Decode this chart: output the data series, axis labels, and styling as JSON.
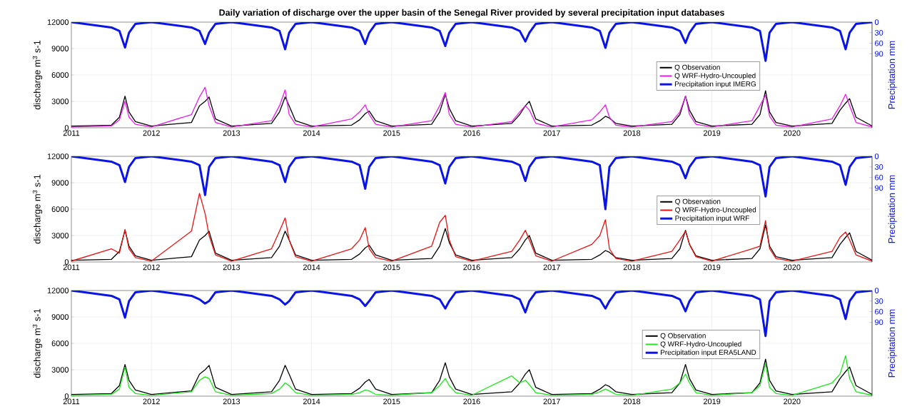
{
  "chart_data": [
    {
      "type": "line",
      "title": "Daily variation of discharge over the upper basin of the Senegal River provided by several precipitation input databases",
      "ylabel": "discharge m$^{3}$ s-1",
      "y2label": "Precipitation mm",
      "x": [
        2011,
        2011.5,
        2011.6,
        2011.67,
        2011.72,
        2011.8,
        2012,
        2012.5,
        2012.6,
        2012.67,
        2012.72,
        2012.8,
        2013,
        2013.5,
        2013.6,
        2013.67,
        2013.72,
        2013.8,
        2014,
        2014.5,
        2014.6,
        2014.67,
        2014.72,
        2014.8,
        2015,
        2015.5,
        2015.6,
        2015.67,
        2015.72,
        2015.8,
        2016,
        2016.5,
        2016.6,
        2016.67,
        2016.72,
        2016.8,
        2017,
        2017.5,
        2017.6,
        2017.67,
        2017.72,
        2017.8,
        2018,
        2018.5,
        2018.6,
        2018.67,
        2018.72,
        2018.8,
        2019,
        2019.5,
        2019.6,
        2019.67,
        2019.72,
        2019.8,
        2020,
        2020.5,
        2020.6,
        2020.67,
        2020.72,
        2020.8,
        2021
      ],
      "xlim": [
        2011,
        2021
      ],
      "xticks": [
        2011,
        2012,
        2013,
        2014,
        2015,
        2016,
        2017,
        2018,
        2019,
        2020
      ],
      "ylim": [
        0,
        12000
      ],
      "yticks": [
        0,
        3000,
        6000,
        9000,
        12000
      ],
      "y2lim": [
        300,
        0
      ],
      "y2ticks": [
        0,
        30,
        60,
        90
      ],
      "grid": true,
      "legend": "right",
      "series": [
        {
          "name": "Q Observation",
          "color": "#000000",
          "values": [
            200,
            300,
            1200,
            3600,
            1800,
            700,
            200,
            600,
            2500,
            3000,
            3500,
            1000,
            200,
            500,
            1800,
            3500,
            2500,
            800,
            200,
            300,
            900,
            1600,
            1900,
            800,
            200,
            400,
            1800,
            3800,
            2200,
            800,
            200,
            500,
            1500,
            2500,
            3000,
            1000,
            200,
            300,
            800,
            1300,
            1100,
            500,
            200,
            400,
            1500,
            3600,
            2000,
            700,
            200,
            400,
            1500,
            4200,
            1800,
            600,
            200,
            500,
            2000,
            2800,
            3300,
            1200,
            200
          ]
        },
        {
          "name": "Q WRF-Hydro-Uncoupled",
          "color": "#e81ee8",
          "values": [
            100,
            200,
            900,
            3000,
            1200,
            400,
            100,
            1500,
            3500,
            4600,
            2500,
            600,
            100,
            800,
            2500,
            4300,
            1500,
            400,
            100,
            1000,
            1800,
            2600,
            1500,
            400,
            100,
            800,
            2500,
            4000,
            1500,
            400,
            100,
            700,
            1800,
            2500,
            2000,
            500,
            100,
            900,
            1800,
            2600,
            1200,
            300,
            100,
            700,
            1800,
            3600,
            1500,
            400,
            100,
            800,
            2500,
            3700,
            1300,
            300,
            100,
            1000,
            2500,
            3800,
            2500,
            600,
            100
          ]
        },
        {
          "name": "Precipitation input IMERG",
          "color": "#0a14e6",
          "axis": "y2",
          "values": [
            0,
            15,
            25,
            72,
            30,
            5,
            0,
            15,
            25,
            62,
            30,
            5,
            0,
            15,
            25,
            77,
            30,
            5,
            0,
            15,
            25,
            62,
            30,
            5,
            0,
            15,
            25,
            68,
            30,
            5,
            0,
            15,
            25,
            55,
            30,
            5,
            0,
            15,
            25,
            73,
            30,
            5,
            0,
            15,
            25,
            59,
            30,
            5,
            0,
            15,
            25,
            110,
            30,
            5,
            0,
            15,
            25,
            77,
            30,
            5,
            0
          ]
        }
      ]
    },
    {
      "type": "line",
      "ylabel": "discharge m$^{3}$ s-1",
      "y2label": "Precipitation mm",
      "x": [
        2011,
        2011.5,
        2011.6,
        2011.67,
        2011.72,
        2011.8,
        2012,
        2012.5,
        2012.6,
        2012.67,
        2012.72,
        2012.8,
        2013,
        2013.5,
        2013.6,
        2013.67,
        2013.72,
        2013.8,
        2014,
        2014.5,
        2014.6,
        2014.67,
        2014.72,
        2014.8,
        2015,
        2015.5,
        2015.6,
        2015.67,
        2015.72,
        2015.8,
        2016,
        2016.5,
        2016.6,
        2016.67,
        2016.72,
        2016.8,
        2017,
        2017.5,
        2017.6,
        2017.67,
        2017.72,
        2017.8,
        2018,
        2018.5,
        2018.6,
        2018.67,
        2018.72,
        2018.8,
        2019,
        2019.5,
        2019.6,
        2019.67,
        2019.72,
        2019.8,
        2020,
        2020.5,
        2020.6,
        2020.67,
        2020.72,
        2020.8,
        2021
      ],
      "xlim": [
        2011,
        2021
      ],
      "xticks": [
        2011,
        2012,
        2013,
        2014,
        2015,
        2016,
        2017,
        2018,
        2019,
        2020
      ],
      "ylim": [
        0,
        12000
      ],
      "yticks": [
        0,
        3000,
        6000,
        9000,
        12000
      ],
      "y2lim": [
        300,
        0
      ],
      "y2ticks": [
        0,
        30,
        60,
        90
      ],
      "grid": true,
      "legend": "right",
      "series": [
        {
          "name": "Q Observation",
          "color": "#000000",
          "values": [
            200,
            300,
            1200,
            3600,
            1800,
            700,
            200,
            600,
            2500,
            3000,
            3500,
            1000,
            200,
            500,
            1800,
            3500,
            2500,
            800,
            200,
            300,
            900,
            1600,
            1900,
            800,
            200,
            400,
            1800,
            3800,
            2200,
            800,
            200,
            500,
            1500,
            2500,
            3000,
            1000,
            200,
            300,
            800,
            1300,
            1100,
            500,
            200,
            400,
            1500,
            3600,
            2000,
            700,
            200,
            400,
            1500,
            4200,
            1800,
            600,
            200,
            500,
            2000,
            2800,
            3300,
            1200,
            200
          ]
        },
        {
          "name": "Q WRF-Hydro-Uncoupled",
          "color": "#e61414",
          "values": [
            100,
            1500,
            1000,
            3700,
            1500,
            500,
            100,
            3500,
            7800,
            5500,
            3000,
            800,
            100,
            1500,
            3500,
            5000,
            2500,
            600,
            100,
            1500,
            2500,
            3900,
            1500,
            500,
            100,
            1800,
            4500,
            5300,
            2500,
            600,
            100,
            1200,
            2500,
            3600,
            2500,
            700,
            100,
            2000,
            3000,
            4800,
            1500,
            400,
            100,
            1200,
            2500,
            3500,
            2000,
            600,
            100,
            1500,
            1800,
            4700,
            1500,
            400,
            100,
            1200,
            2800,
            3400,
            2500,
            800,
            100
          ]
        },
        {
          "name": "Precipitation input WRF",
          "color": "#0a14e6",
          "axis": "y2",
          "values": [
            0,
            15,
            25,
            73,
            30,
            5,
            0,
            15,
            25,
            110,
            30,
            5,
            0,
            15,
            25,
            73,
            30,
            5,
            0,
            15,
            25,
            92,
            30,
            5,
            0,
            15,
            25,
            77,
            30,
            5,
            0,
            15,
            25,
            70,
            30,
            5,
            0,
            15,
            25,
            150,
            30,
            5,
            0,
            15,
            25,
            62,
            30,
            5,
            0,
            15,
            25,
            114,
            30,
            5,
            0,
            15,
            25,
            81,
            30,
            5,
            0
          ]
        }
      ]
    },
    {
      "type": "line",
      "ylabel": "discharge m$^{3}$ s-1",
      "y2label": "Precipitation mm",
      "x": [
        2011,
        2011.5,
        2011.6,
        2011.67,
        2011.72,
        2011.8,
        2012,
        2012.5,
        2012.6,
        2012.67,
        2012.72,
        2012.8,
        2013,
        2013.5,
        2013.6,
        2013.67,
        2013.72,
        2013.8,
        2014,
        2014.5,
        2014.6,
        2014.67,
        2014.72,
        2014.8,
        2015,
        2015.5,
        2015.6,
        2015.67,
        2015.72,
        2015.8,
        2016,
        2016.5,
        2016.6,
        2016.67,
        2016.72,
        2016.8,
        2017,
        2017.5,
        2017.6,
        2017.67,
        2017.72,
        2017.8,
        2018,
        2018.5,
        2018.6,
        2018.67,
        2018.72,
        2018.8,
        2019,
        2019.5,
        2019.6,
        2019.67,
        2019.72,
        2019.8,
        2020,
        2020.5,
        2020.6,
        2020.67,
        2020.72,
        2020.8,
        2021
      ],
      "xlim": [
        2011,
        2021
      ],
      "xticks": [
        2011,
        2012,
        2013,
        2014,
        2015,
        2016,
        2017,
        2018,
        2019,
        2020
      ],
      "ylim": [
        0,
        12000
      ],
      "yticks": [
        0,
        3000,
        6000,
        9000,
        12000
      ],
      "y2lim": [
        300,
        0
      ],
      "y2ticks": [
        0,
        30,
        60,
        90
      ],
      "grid": true,
      "legend": "right",
      "series": [
        {
          "name": "Q Observation",
          "color": "#000000",
          "values": [
            200,
            300,
            1200,
            3600,
            1800,
            700,
            200,
            600,
            2500,
            3000,
            3500,
            1000,
            200,
            500,
            1800,
            3500,
            2500,
            800,
            200,
            300,
            900,
            1600,
            1900,
            800,
            200,
            400,
            1800,
            3800,
            2200,
            800,
            200,
            500,
            1500,
            2500,
            3000,
            1000,
            200,
            300,
            800,
            1300,
            1100,
            500,
            200,
            400,
            1500,
            3600,
            2000,
            700,
            200,
            400,
            1500,
            4200,
            1800,
            600,
            200,
            500,
            2000,
            2800,
            3300,
            1200,
            200
          ]
        },
        {
          "name": "Q WRF-Hydro-Uncoupled",
          "color": "#1ee61e",
          "values": [
            100,
            200,
            800,
            3300,
            1000,
            300,
            100,
            500,
            1800,
            2200,
            2000,
            500,
            100,
            300,
            800,
            1500,
            1200,
            400,
            100,
            200,
            400,
            700,
            600,
            200,
            100,
            400,
            1200,
            2000,
            1200,
            400,
            100,
            2300,
            1500,
            1800,
            1300,
            400,
            100,
            200,
            500,
            800,
            600,
            200,
            100,
            800,
            1500,
            2500,
            1500,
            400,
            100,
            400,
            1200,
            3700,
            1000,
            300,
            100,
            1500,
            2500,
            4600,
            2000,
            500,
            100
          ]
        },
        {
          "name": "Precipitation input ERA5LAND",
          "color": "#0a14e6",
          "axis": "y2",
          "values": [
            0,
            15,
            25,
            77,
            30,
            5,
            0,
            15,
            25,
            37,
            30,
            5,
            0,
            15,
            25,
            40,
            30,
            5,
            0,
            15,
            25,
            44,
            30,
            5,
            0,
            15,
            25,
            51,
            30,
            5,
            0,
            15,
            25,
            62,
            30,
            5,
            0,
            15,
            25,
            51,
            30,
            5,
            0,
            15,
            25,
            59,
            30,
            5,
            0,
            15,
            25,
            129,
            30,
            5,
            0,
            15,
            25,
            81,
            30,
            5,
            0
          ]
        }
      ]
    }
  ]
}
